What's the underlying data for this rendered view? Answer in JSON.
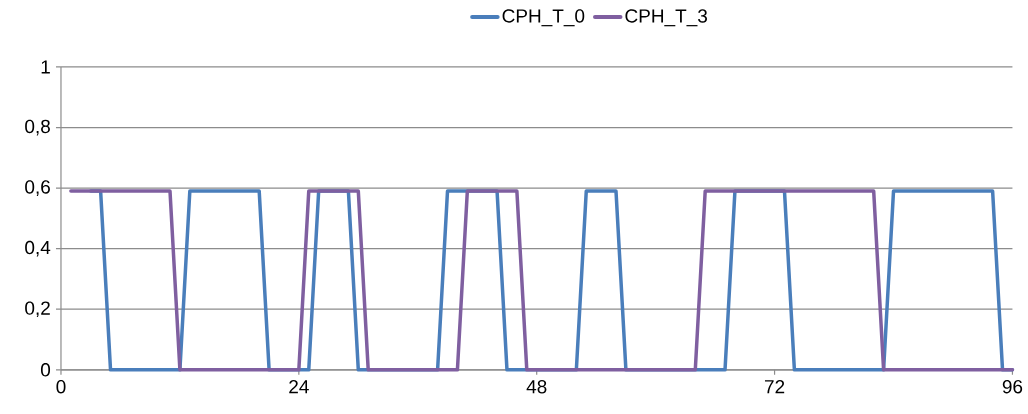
{
  "chart_data": {
    "type": "line",
    "x": [
      1,
      2,
      3,
      4,
      5,
      6,
      7,
      8,
      9,
      10,
      11,
      12,
      13,
      14,
      15,
      16,
      17,
      18,
      19,
      20,
      21,
      22,
      23,
      24,
      25,
      26,
      27,
      28,
      29,
      30,
      31,
      32,
      33,
      34,
      35,
      36,
      37,
      38,
      39,
      40,
      41,
      42,
      43,
      44,
      45,
      46,
      47,
      48,
      49,
      50,
      51,
      52,
      53,
      54,
      55,
      56,
      57,
      58,
      59,
      60,
      61,
      62,
      63,
      64,
      65,
      66,
      67,
      68,
      69,
      70,
      71,
      72,
      73,
      74,
      75,
      76,
      77,
      78,
      79,
      80,
      81,
      82,
      83,
      84,
      85,
      86,
      87,
      88,
      89,
      90,
      91,
      92,
      93,
      94,
      95,
      96
    ],
    "series": [
      {
        "name": "CPH_T_0",
        "color": "#4a7ebb",
        "values": [
          null,
          null,
          0.59,
          0.59,
          0,
          0,
          0,
          0,
          0,
          0,
          0,
          0,
          0.59,
          0.59,
          0.59,
          0.59,
          0.59,
          0.59,
          0.59,
          0.59,
          0,
          0,
          0,
          0,
          0,
          0.59,
          0.59,
          0.59,
          0.59,
          0,
          0,
          0,
          0,
          0,
          0,
          0,
          0,
          0,
          0.59,
          0.59,
          0.59,
          0.59,
          0.59,
          0.59,
          0,
          0,
          0,
          0,
          0,
          0,
          0,
          0,
          0.59,
          0.59,
          0.59,
          0.59,
          0,
          0,
          0,
          0,
          0,
          0,
          0,
          0,
          0,
          0,
          0,
          0.59,
          0.59,
          0.59,
          0.59,
          0.59,
          0.59,
          0,
          0,
          0,
          0,
          0,
          0,
          0,
          0,
          0,
          0,
          0.59,
          0.59,
          0.59,
          0.59,
          0.59,
          0.59,
          0.59,
          0.59,
          0.59,
          0.59,
          0.59,
          0,
          0
        ]
      },
      {
        "name": "CPH_T_3",
        "color": "#7f5fa0",
        "values": [
          0.59,
          0.59,
          0.59,
          0.59,
          0.59,
          0.59,
          0.59,
          0.59,
          0.59,
          0.59,
          0.59,
          0,
          0,
          0,
          0,
          0,
          0,
          0,
          0,
          0,
          0,
          0,
          0,
          0,
          0.59,
          0.59,
          0.59,
          0.59,
          0.59,
          0.59,
          0,
          0,
          0,
          0,
          0,
          0,
          0,
          0,
          0,
          0,
          0.59,
          0.59,
          0.59,
          0.59,
          0.59,
          0.59,
          0,
          0,
          0,
          0,
          0,
          0,
          0,
          0,
          0,
          0,
          0,
          0,
          0,
          0,
          0,
          0,
          0,
          0,
          0.59,
          0.59,
          0.59,
          0.59,
          0.59,
          0.59,
          0.59,
          0.59,
          0.59,
          0.59,
          0.59,
          0.59,
          0.59,
          0.59,
          0.59,
          0.59,
          0.59,
          0.59,
          0,
          0,
          0,
          0,
          0,
          0,
          0,
          0,
          0,
          0,
          0,
          0,
          0,
          0
        ]
      }
    ],
    "xlim": [
      0,
      96
    ],
    "ylim": [
      0,
      1
    ],
    "xticks": [
      0,
      24,
      48,
      72,
      96
    ],
    "yticks": [
      0,
      {
        "value": 0.2,
        "label": "0,2"
      },
      {
        "value": 0.4,
        "label": "0,4"
      },
      {
        "value": 0.6,
        "label": "0,6"
      },
      {
        "value": 0.8,
        "label": "0,8"
      },
      1
    ],
    "grid": "y",
    "legend": "top",
    "line_style": "solid",
    "marker": "none"
  }
}
